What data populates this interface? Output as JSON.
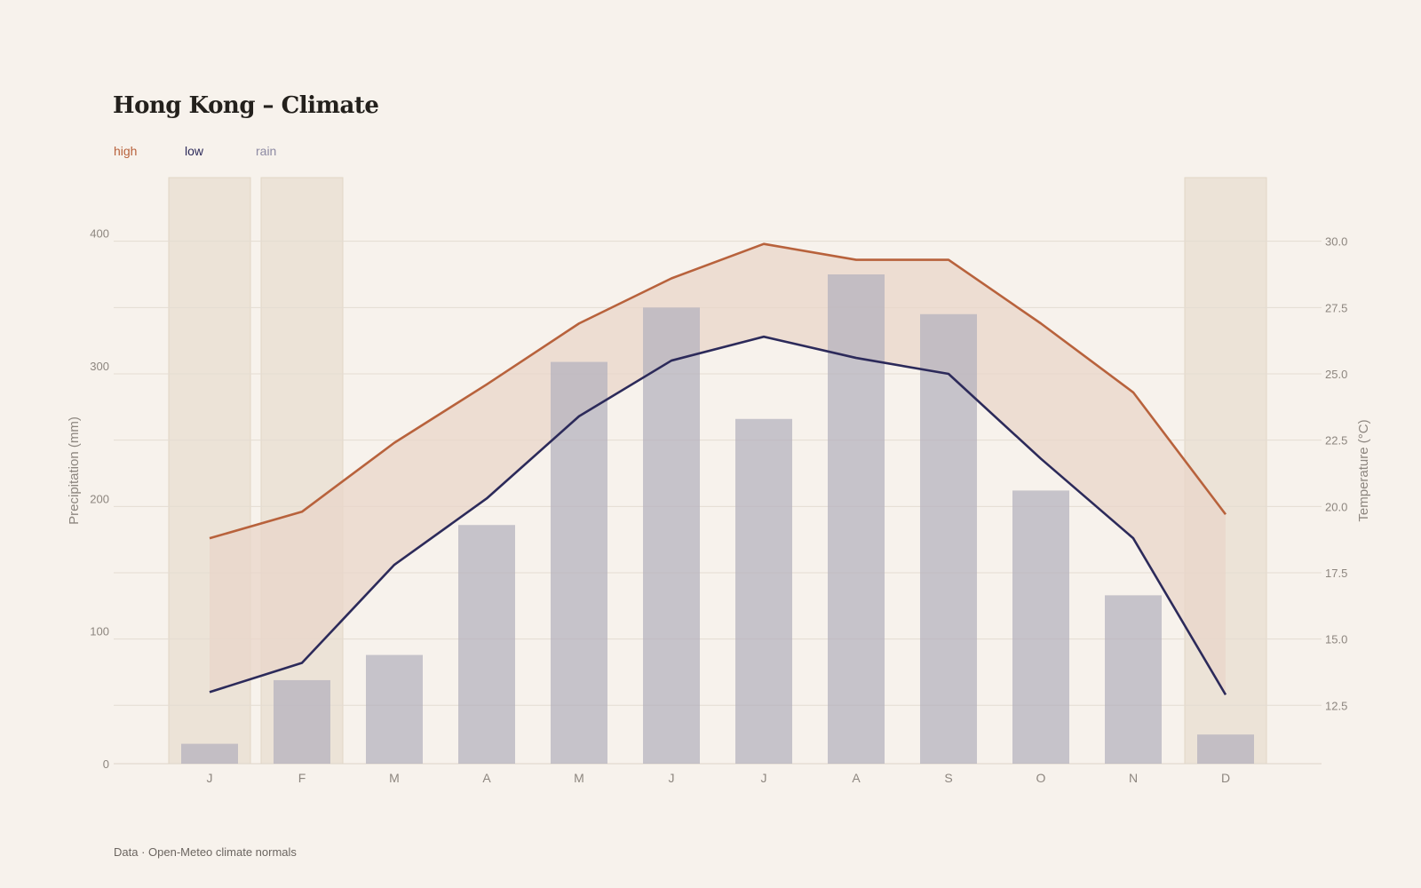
{
  "title": "Hong Kong – Climate",
  "footer": "Data · Open-Meteo climate normals",
  "legend": [
    {
      "label": "high",
      "color": "#b8623c"
    },
    {
      "label": "low",
      "color": "#2c2a5a"
    },
    {
      "label": "rain",
      "color": "#8d8aa3"
    }
  ],
  "chart_data": {
    "type": "bar+line",
    "categories": [
      "J",
      "F",
      "M",
      "A",
      "M",
      "J",
      "J",
      "A",
      "S",
      "O",
      "N",
      "D"
    ],
    "series": [
      {
        "name": "rain",
        "type": "bar",
        "axis": "left",
        "color": "#c2bfc7",
        "values": [
          15,
          63,
          82,
          180,
          303,
          344,
          260,
          369,
          339,
          206,
          127,
          22
        ]
      },
      {
        "name": "high",
        "type": "line",
        "axis": "right",
        "color": "#b8623c",
        "values": [
          18.8,
          19.8,
          22.4,
          24.6,
          26.9,
          28.6,
          29.9,
          29.3,
          29.3,
          26.9,
          24.3,
          19.7
        ]
      },
      {
        "name": "low",
        "type": "line",
        "axis": "right",
        "color": "#2c2a5a",
        "values": [
          13.0,
          14.1,
          17.8,
          20.3,
          23.4,
          25.5,
          26.4,
          25.6,
          25.0,
          21.8,
          18.8,
          12.9
        ]
      }
    ],
    "highlighted_months": [
      "J",
      "F",
      "D"
    ],
    "y_left": {
      "label": "Precipitation (mm)",
      "ticks": [
        0,
        100,
        200,
        300,
        400
      ],
      "range": [
        0,
        442
      ]
    },
    "y_right": {
      "label": "Temperature (°C)",
      "ticks": [
        "12.5",
        "15.0",
        "17.5",
        "20.0",
        "22.5",
        "25.0",
        "27.5",
        "30.0"
      ],
      "range": [
        10.3,
        32.4
      ]
    },
    "grid": true,
    "band_fill": "#e9d5ca"
  }
}
